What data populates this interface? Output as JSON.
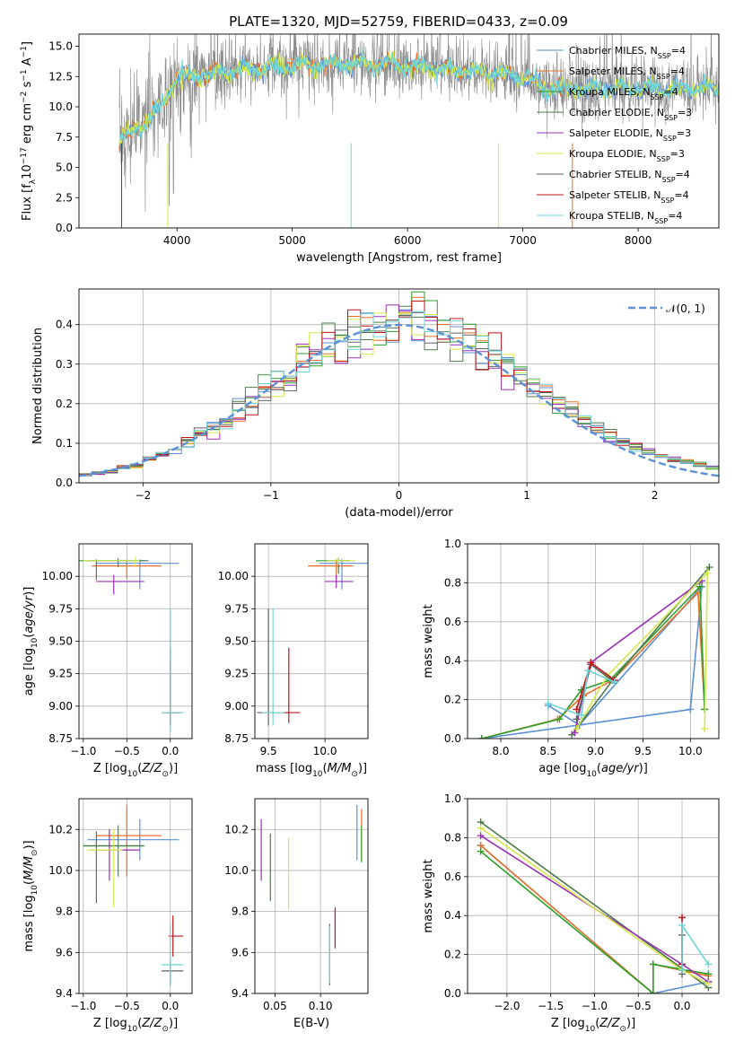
{
  "figure_title": "PLATE=1320, MJD=52759, FIBERID=0433, z=0.09",
  "colors": {
    "Chabrier MILES": "#5b8fd6",
    "Salpeter MILES": "#e8702a",
    "Kroupa MILES": "#2ca02c",
    "Chabrier ELODIE": "#4d7a4d",
    "Salpeter ELODIE": "#9b30b8",
    "Kroupa ELODIE": "#d4e84a",
    "Chabrier STELIB": "#606060",
    "Salpeter STELIB": "#c0161b",
    "Kroupa STELIB": "#6fd3d8",
    "normal": "#5b8fd6"
  },
  "legend_entries": [
    {
      "model": "Chabrier MILES",
      "n": "4"
    },
    {
      "model": "Salpeter MILES",
      "n": "4"
    },
    {
      "model": "Kroupa MILES",
      "n": "4"
    },
    {
      "model": "Chabrier ELODIE",
      "n": "3"
    },
    {
      "model": "Salpeter ELODIE",
      "n": "3"
    },
    {
      "model": "Kroupa ELODIE",
      "n": "3"
    },
    {
      "model": "Chabrier STELIB",
      "n": "4"
    },
    {
      "model": "Salpeter STELIB",
      "n": "4"
    },
    {
      "model": "Kroupa STELIB",
      "n": "4"
    }
  ],
  "chart_data": [
    {
      "id": "spectrum",
      "type": "line",
      "xlabel": "wavelength [Angstrom, rest frame]",
      "ylabel": "Flux [f_λ 10^-17 erg cm^-2 s^-1 A^-1]",
      "xlim": [
        3150,
        8700
      ],
      "ylim": [
        0,
        16
      ],
      "xticks": [
        4000,
        5000,
        6000,
        7000,
        8000
      ],
      "yticks": [
        0.0,
        2.5,
        5.0,
        7.5,
        10.0,
        12.5,
        15.0
      ],
      "continuum": {
        "x": [
          3500,
          3600,
          3700,
          3800,
          3900,
          4000,
          4200,
          4500,
          5000,
          5500,
          6000,
          6500,
          7000,
          7200,
          7430
        ],
        "y": [
          7.5,
          7.8,
          8.5,
          9.5,
          10.5,
          12.5,
          12.6,
          13.0,
          13.4,
          13.6,
          13.4,
          13.0,
          12.5,
          11.5,
          11.5
        ]
      },
      "series_names": [
        "Chabrier MILES",
        "Salpeter MILES",
        "Kroupa MILES",
        "Chabrier ELODIE",
        "Salpeter ELODIE",
        "Kroupa ELODIE",
        "Chabrier STELIB",
        "Salpeter STELIB",
        "Kroupa STELIB"
      ]
    },
    {
      "id": "residuals",
      "type": "histogram",
      "xlabel": "(data-model)/error",
      "ylabel": "Normed distribution",
      "xlim": [
        -2.5,
        2.5
      ],
      "ylim": [
        0,
        0.49
      ],
      "xticks": [
        -2,
        -1,
        0,
        1,
        2
      ],
      "yticks": [
        0.0,
        0.1,
        0.2,
        0.3,
        0.4
      ],
      "legend_label": "𝒩(0, 1)",
      "grid": true
    },
    {
      "id": "age_vs_Z",
      "type": "errorbar",
      "xlabel": "Z [log10(Z/Z⊙)]",
      "ylabel": "age [log10(age/yr)]",
      "xlim": [
        -1.05,
        0.25
      ],
      "ylim": [
        8.75,
        10.25
      ],
      "xticks": [
        -1.0,
        -0.5,
        0.0
      ],
      "yticks": [
        8.75,
        9.0,
        9.25,
        9.5,
        9.75,
        10.0
      ],
      "points": [
        {
          "model": "Chabrier MILES",
          "x": -0.35,
          "xe": [
            0.5,
            0.45
          ],
          "y": 10.1,
          "ye": [
            0.2,
            0.03
          ]
        },
        {
          "model": "Salpeter MILES",
          "x": -0.5,
          "xe": [
            0.4,
            0.4
          ],
          "y": 10.08,
          "ye": [
            0.1,
            0.05
          ]
        },
        {
          "model": "Kroupa MILES",
          "x": -0.6,
          "xe": [
            0.45,
            0.3
          ],
          "y": 10.12,
          "ye": [
            0.05,
            0.02
          ]
        },
        {
          "model": "Chabrier ELODIE",
          "x": -0.85,
          "xe": [
            0.1,
            0.6
          ],
          "y": 10.12,
          "ye": [
            0.15,
            0.01
          ]
        },
        {
          "model": "Salpeter ELODIE",
          "x": -0.65,
          "xe": [
            0.2,
            0.35
          ],
          "y": 9.96,
          "ye": [
            0.1,
            0.05
          ]
        },
        {
          "model": "Kroupa ELODIE",
          "x": -0.4,
          "xe": [
            0.6,
            0.05
          ],
          "y": 10.12,
          "ye": [
            0.05,
            0.03
          ]
        },
        {
          "model": "Chabrier STELIB",
          "x": 0.0,
          "xe": [
            0.1,
            0.15
          ],
          "y": 8.95,
          "ye": [
            0.1,
            0.5
          ]
        },
        {
          "model": "Salpeter STELIB",
          "x": 0.0,
          "xe": [
            0.05,
            0.1
          ],
          "y": 8.95,
          "ye": [
            0.1,
            0.4
          ]
        },
        {
          "model": "Kroupa STELIB",
          "x": 0.0,
          "xe": [
            0.1,
            0.15
          ],
          "y": 8.95,
          "ye": [
            0.15,
            0.8
          ]
        }
      ]
    },
    {
      "id": "age_vs_mass",
      "type": "errorbar",
      "xlabel": "mass [log10(M/M⊙)]",
      "ylabel": "",
      "xlim": [
        9.38,
        10.38
      ],
      "ylim": [
        8.75,
        10.25
      ],
      "xticks": [
        9.5,
        10.0
      ],
      "yticks": [
        8.75,
        9.0,
        9.25,
        9.5,
        9.75,
        10.0
      ],
      "points": [
        {
          "model": "Chabrier MILES",
          "x": 10.15,
          "xe": [
            0.2,
            0.25
          ],
          "y": 10.1,
          "ye": [
            0.2,
            0.03
          ]
        },
        {
          "model": "Salpeter MILES",
          "x": 10.1,
          "xe": [
            0.25,
            0.15
          ],
          "y": 10.08,
          "ye": [
            0.1,
            0.05
          ]
        },
        {
          "model": "Kroupa MILES",
          "x": 10.12,
          "xe": [
            0.2,
            0.1
          ],
          "y": 10.12,
          "ye": [
            0.05,
            0.02
          ]
        },
        {
          "model": "Chabrier ELODIE",
          "x": 10.12,
          "xe": [
            0.1,
            0.1
          ],
          "y": 10.12,
          "ye": [
            0.1,
            0.01
          ]
        },
        {
          "model": "Salpeter ELODIE",
          "x": 10.1,
          "xe": [
            0.1,
            0.15
          ],
          "y": 9.96,
          "ye": [
            0.05,
            0.05
          ]
        },
        {
          "model": "Kroupa ELODIE",
          "x": 10.12,
          "xe": [
            0.1,
            0.15
          ],
          "y": 10.12,
          "ye": [
            0.03,
            0.03
          ]
        },
        {
          "model": "Chabrier STELIB",
          "x": 9.5,
          "xe": [
            0.1,
            0.1
          ],
          "y": 8.95,
          "ye": [
            0.1,
            0.8
          ]
        },
        {
          "model": "Salpeter STELIB",
          "x": 9.68,
          "xe": [
            0.1,
            0.1
          ],
          "y": 8.95,
          "ye": [
            0.08,
            0.5
          ]
        },
        {
          "model": "Kroupa STELIB",
          "x": 9.54,
          "xe": [
            0.1,
            0.1
          ],
          "y": 8.95,
          "ye": [
            0.1,
            0.8
          ]
        }
      ]
    },
    {
      "id": "weight_vs_age",
      "type": "line",
      "xlabel": "age [log10(age/yr)]",
      "ylabel": "mass weight",
      "xlim": [
        7.65,
        10.3
      ],
      "ylim": [
        0,
        1.0
      ],
      "xticks": [
        8.0,
        8.5,
        9.0,
        9.5,
        10.0
      ],
      "yticks": [
        0.0,
        0.2,
        0.4,
        0.6,
        0.8,
        1.0
      ],
      "series": [
        {
          "name": "Chabrier MILES",
          "x": [
            7.8,
            10.0,
            10.12,
            8.83,
            8.5
          ],
          "y": [
            0.0,
            0.15,
            0.78,
            0.07,
            0.17
          ]
        },
        {
          "name": "Salpeter MILES",
          "x": [
            7.8,
            8.6,
            8.87,
            9.18,
            10.08,
            10.15
          ],
          "y": [
            0.0,
            0.1,
            0.22,
            0.3,
            0.75,
            0.15
          ]
        },
        {
          "name": "Kroupa MILES",
          "x": [
            7.8,
            8.62,
            8.85,
            9.15,
            10.1,
            10.15
          ],
          "y": [
            0.0,
            0.1,
            0.25,
            0.3,
            0.78,
            0.15
          ]
        },
        {
          "name": "Chabrier ELODIE",
          "x": [
            8.75,
            9.18,
            10.2
          ],
          "y": [
            0.02,
            0.3,
            0.88
          ]
        },
        {
          "name": "Salpeter ELODIE",
          "x": [
            8.78,
            8.95,
            10.12
          ],
          "y": [
            0.03,
            0.39,
            0.81
          ]
        },
        {
          "name": "Kroupa ELODIE",
          "x": [
            8.8,
            9.12,
            10.18,
            10.15
          ],
          "y": [
            0.05,
            0.32,
            0.85,
            0.05
          ]
        },
        {
          "name": "Chabrier STELIB",
          "x": [
            8.8,
            8.95,
            9.2
          ],
          "y": [
            0.1,
            0.38,
            0.29
          ]
        },
        {
          "name": "Salpeter STELIB",
          "x": [
            8.8,
            8.95,
            9.2
          ],
          "y": [
            0.15,
            0.39,
            0.3
          ]
        },
        {
          "name": "Kroupa STELIB",
          "x": [
            8.5,
            8.85,
            8.92,
            9.2
          ],
          "y": [
            0.18,
            0.12,
            0.35,
            0.29
          ]
        }
      ]
    },
    {
      "id": "mass_vs_Z",
      "type": "errorbar",
      "xlabel": "Z [log10(Z/Z⊙)]",
      "ylabel": "mass [log10(M/M⊙)]",
      "xlim": [
        -1.05,
        0.25
      ],
      "ylim": [
        9.4,
        10.35
      ],
      "xticks": [
        -1.0,
        -0.5,
        0.0
      ],
      "yticks": [
        9.4,
        9.6,
        9.8,
        10.0,
        10.2
      ],
      "points": [
        {
          "model": "Chabrier MILES",
          "x": -0.35,
          "xe": [
            0.6,
            0.45
          ],
          "y": 10.15,
          "ye": [
            0.1,
            0.1
          ]
        },
        {
          "model": "Salpeter MILES",
          "x": -0.5,
          "xe": [
            0.35,
            0.4
          ],
          "y": 10.17,
          "ye": [
            0.2,
            0.15
          ]
        },
        {
          "model": "Kroupa MILES",
          "x": -0.6,
          "xe": [
            0.4,
            0.3
          ],
          "y": 10.12,
          "ye": [
            0.15,
            0.1
          ]
        },
        {
          "model": "Chabrier ELODIE",
          "x": -0.85,
          "xe": [
            0.15,
            0.55
          ],
          "y": 10.12,
          "ye": [
            0.28,
            0.07
          ]
        },
        {
          "model": "Salpeter ELODIE",
          "x": -0.7,
          "xe": [
            0.2,
            0.35
          ],
          "y": 10.1,
          "ye": [
            0.15,
            0.1
          ]
        },
        {
          "model": "Kroupa ELODIE",
          "x": -0.65,
          "xe": [
            0.3,
            0.1
          ],
          "y": 10.1,
          "ye": [
            0.28,
            0.1
          ]
        },
        {
          "model": "Chabrier STELIB",
          "x": 0.0,
          "xe": [
            0.1,
            0.15
          ],
          "y": 9.51,
          "ye": [
            0.07,
            0.05
          ]
        },
        {
          "model": "Salpeter STELIB",
          "x": 0.03,
          "xe": [
            0.05,
            0.12
          ],
          "y": 9.68,
          "ye": [
            0.1,
            0.1
          ]
        },
        {
          "model": "Kroupa STELIB",
          "x": 0.0,
          "xe": [
            0.1,
            0.15
          ],
          "y": 9.54,
          "ye": [
            0.1,
            0.2
          ]
        }
      ]
    },
    {
      "id": "mass_vs_EBV",
      "type": "errorbar",
      "xlabel": "E(B-V)",
      "ylabel": "",
      "xlim": [
        0.028,
        0.152
      ],
      "ylim": [
        9.4,
        10.35
      ],
      "xticks": [
        0.05,
        0.1
      ],
      "yticks": [
        9.4,
        9.6,
        9.8,
        10.0,
        10.2
      ],
      "points": [
        {
          "model": "Chabrier MILES",
          "x": 0.14,
          "xe": [
            0,
            0
          ],
          "y": 10.15,
          "ye": [
            0.1,
            0.17
          ]
        },
        {
          "model": "Salpeter MILES",
          "x": 0.145,
          "xe": [
            0,
            0
          ],
          "y": 10.15,
          "ye": [
            0.1,
            0.15
          ]
        },
        {
          "model": "Kroupa MILES",
          "x": 0.145,
          "xe": [
            0,
            0
          ],
          "y": 10.12,
          "ye": [
            0.08,
            0.1
          ]
        },
        {
          "model": "Chabrier ELODIE",
          "x": 0.045,
          "xe": [
            0,
            0
          ],
          "y": 10.0,
          "ye": [
            0.15,
            0.18
          ]
        },
        {
          "model": "Salpeter ELODIE",
          "x": 0.035,
          "xe": [
            0,
            0
          ],
          "y": 10.1,
          "ye": [
            0.15,
            0.15
          ]
        },
        {
          "model": "Kroupa ELODIE",
          "x": 0.065,
          "xe": [
            0,
            0
          ],
          "y": 9.98,
          "ye": [
            0.17,
            0.18
          ]
        },
        {
          "model": "Chabrier STELIB",
          "x": 0.11,
          "xe": [
            0,
            0
          ],
          "y": 9.58,
          "ye": [
            0.14,
            0.16
          ]
        },
        {
          "model": "Salpeter STELIB",
          "x": 0.116,
          "xe": [
            0,
            0
          ],
          "y": 9.72,
          "ye": [
            0.1,
            0.1
          ]
        },
        {
          "model": "Kroupa STELIB",
          "x": 0.11,
          "xe": [
            0,
            0
          ],
          "y": 9.55,
          "ye": [
            0.1,
            0.18
          ]
        }
      ]
    },
    {
      "id": "weight_vs_Z",
      "type": "line",
      "xlabel": "Z [log10(Z/Z⊙)]",
      "ylabel": "mass weight",
      "xlim": [
        -2.45,
        0.42
      ],
      "ylim": [
        0,
        1.0
      ],
      "xticks": [
        -2.0,
        -1.5,
        -1.0,
        -0.5,
        0.0
      ],
      "yticks": [
        0.0,
        0.2,
        0.4,
        0.6,
        0.8,
        1.0
      ],
      "series": [
        {
          "name": "Chabrier MILES",
          "x": [
            -2.3,
            -0.33,
            -0.33,
            0.3
          ],
          "y": [
            0.76,
            0.0,
            0.0,
            0.06
          ]
        },
        {
          "name": "Salpeter MILES",
          "x": [
            -2.3,
            -0.33,
            -0.33,
            0.3
          ],
          "y": [
            0.76,
            0.0,
            0.15,
            0.09
          ]
        },
        {
          "name": "Kroupa MILES",
          "x": [
            -2.3,
            -0.33,
            -0.33,
            0.3
          ],
          "y": [
            0.73,
            0.0,
            0.15,
            0.1
          ]
        },
        {
          "name": "Chabrier ELODIE",
          "x": [
            -2.3,
            0.3
          ],
          "y": [
            0.88,
            0.03
          ]
        },
        {
          "name": "Salpeter ELODIE",
          "x": [
            -2.3,
            0.0,
            0.3
          ],
          "y": [
            0.81,
            0.15,
            0.06
          ]
        },
        {
          "name": "Kroupa ELODIE",
          "x": [
            -2.3,
            0.0,
            0.3
          ],
          "y": [
            0.85,
            0.12,
            0.05
          ]
        },
        {
          "name": "Chabrier STELIB",
          "x": [
            0.0,
            0.0
          ],
          "y": [
            0.1,
            0.3
          ]
        },
        {
          "name": "Salpeter STELIB",
          "x": [
            0.0,
            0.0
          ],
          "y": [
            0.15,
            0.39
          ]
        },
        {
          "name": "Kroupa STELIB",
          "x": [
            0.0,
            0.0,
            0.3
          ],
          "y": [
            0.12,
            0.35,
            0.15
          ]
        }
      ]
    }
  ]
}
